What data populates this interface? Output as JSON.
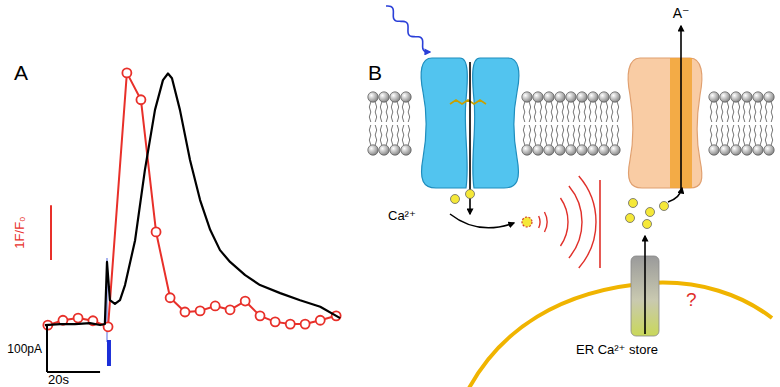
{
  "panel_labels": [
    "A",
    "B"
  ],
  "chart_data": {
    "type": "line",
    "xlim": [
      -1.1,
      112
    ],
    "ylim": [
      -120,
      600
    ],
    "y2lim": [
      -0.1,
      6.1
    ],
    "tick_labels": false,
    "series": [
      {
        "color": "#e8302a",
        "marker": "circle",
        "line_style": "solid",
        "axis": "y2",
        "x": [
          1.1,
          6.8,
          12.5,
          18.1,
          23.8,
          30.9,
          36.2,
          41.9,
          47.2,
          52.8,
          58.5,
          64.2,
          69.8,
          75.5,
          81.1,
          86.8,
          92.5,
          98.1,
          103.8,
          109.8
        ],
        "values": [
          0.9,
          0.99,
          1.03,
          0.98,
          0.87,
          5.5,
          5.01,
          2.6,
          1.4,
          1.14,
          1.16,
          1.25,
          1.18,
          1.34,
          1.07,
          0.96,
          0.92,
          0.92,
          0.99,
          1.07
        ]
      },
      {
        "color": "#000000",
        "marker": "none",
        "line_style": "solid",
        "x": [
          0,
          5.7,
          11.3,
          17.0,
          20.8,
          22.6,
          23.4,
          24.5,
          26.4,
          28.3,
          30.2,
          34.0,
          37.7,
          41.5,
          44.5,
          46.4,
          47.9,
          50.9,
          54.7,
          58.5,
          62.3,
          66.0,
          69.8,
          75.5,
          81.1,
          88.7,
          96.2,
          103.8,
          111.3
        ],
        "values": [
          -3.6,
          -1.5,
          -1.5,
          0.6,
          -3.6,
          -1.5,
          130,
          49,
          41,
          49,
          81,
          176,
          325,
          452,
          515,
          529,
          519,
          452,
          346,
          261,
          198,
          155,
          130,
          102,
          81,
          64,
          49,
          35,
          11
        ]
      }
    ],
    "stimulus": {
      "x": [
        23.4,
        24.9
      ],
      "color": "#1a2ed8"
    },
    "scale_bars": [
      {
        "axis": "x",
        "value": 20,
        "label": "20s",
        "color": "#000000"
      },
      {
        "axis": "y",
        "value": 100,
        "label": "100pA",
        "color": "#000000"
      },
      {
        "axis": "y2",
        "value": 1,
        "label": "1F/F₀",
        "color": "#e8302a"
      }
    ]
  },
  "diagram": {
    "ion_label": "Ca²⁺",
    "anion_label": "A⁻",
    "store_label": "ER Ca²⁺ store",
    "question": "?"
  }
}
